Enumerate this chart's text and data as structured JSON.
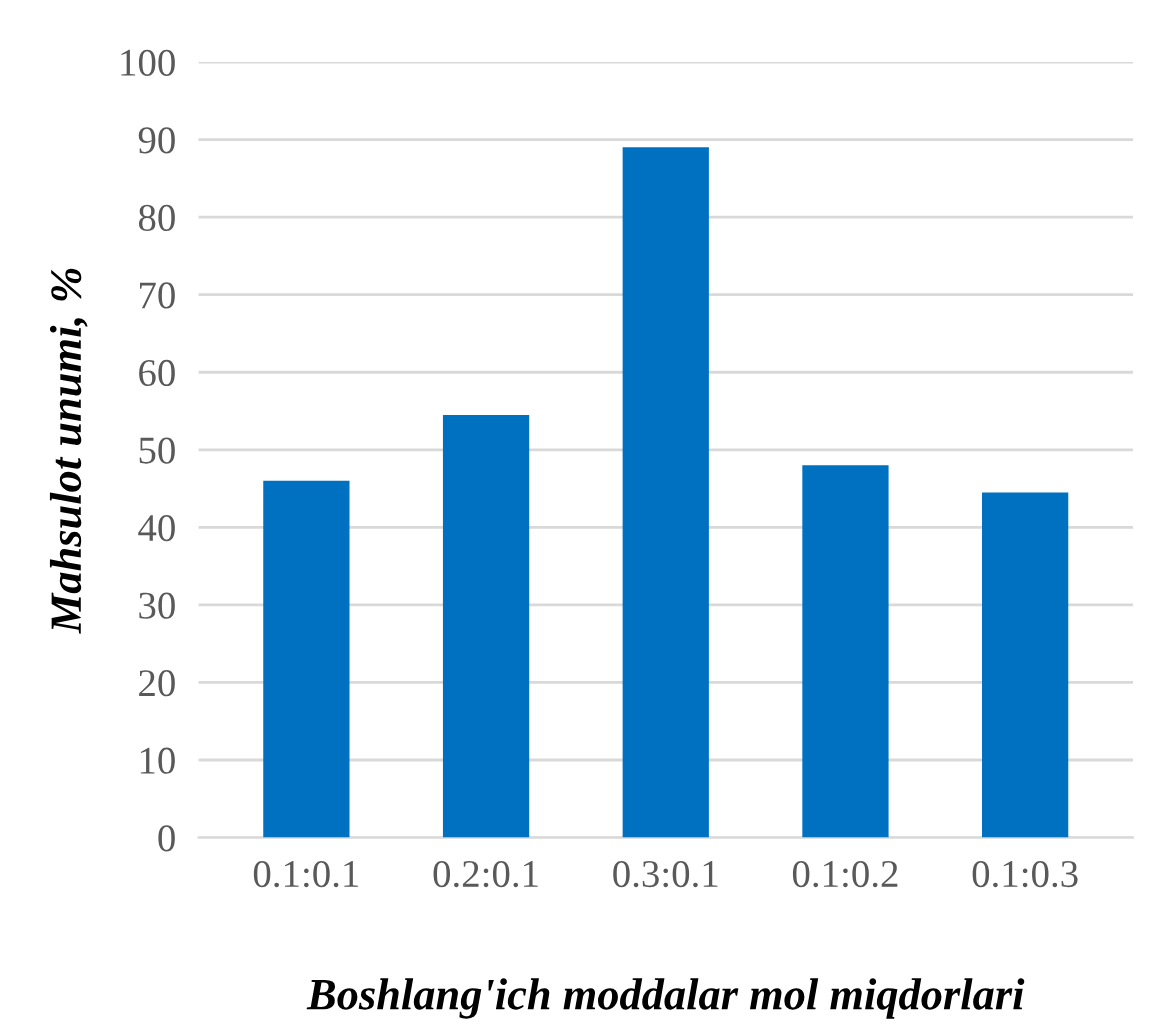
{
  "chart_data": {
    "type": "bar",
    "categories": [
      "0.1:0.1",
      "0.2:0.1",
      "0.3:0.1",
      "0.1:0.2",
      "0.1:0.3"
    ],
    "values": [
      46,
      54.5,
      89,
      48,
      44.5
    ],
    "color": "#0070c0",
    "xlabel": "Boshlang'ich moddalar mol miqdorlari",
    "ylabel": "Mahsulot unumi, %",
    "ylim": [
      0,
      100
    ],
    "yticks": [
      0,
      10,
      20,
      30,
      40,
      50,
      60,
      70,
      80,
      90,
      100
    ],
    "grid": "y",
    "legend": false
  }
}
